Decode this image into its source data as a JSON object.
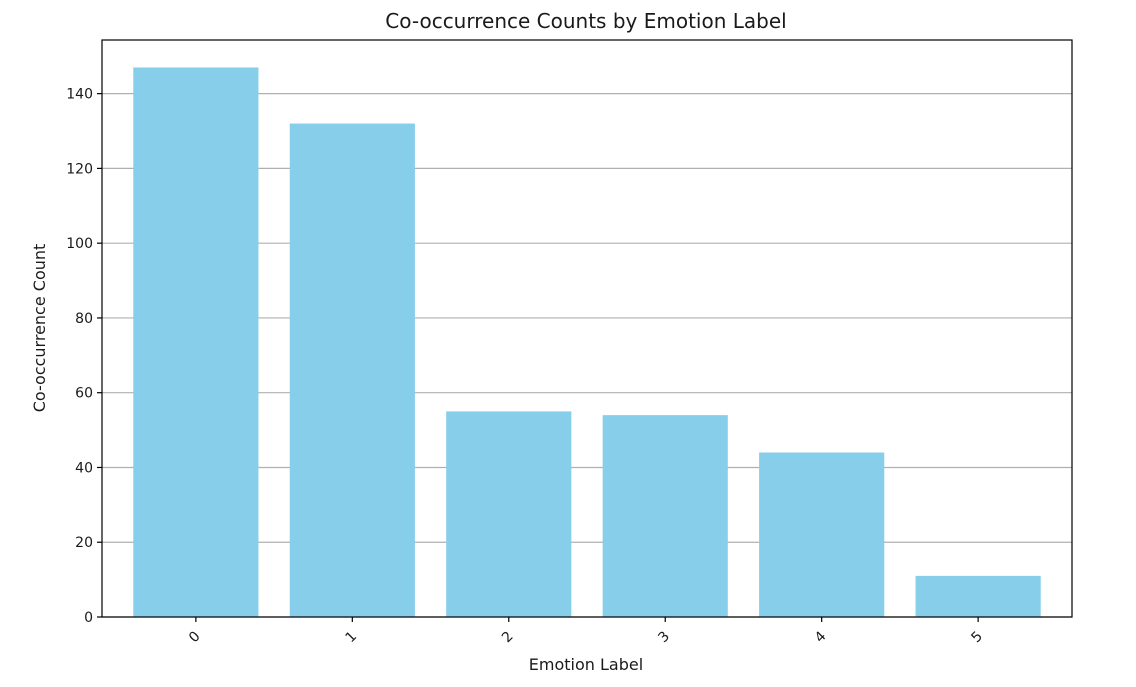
{
  "chart_data": {
    "type": "bar",
    "title": "Co-occurrence Counts by Emotion Label",
    "xlabel": "Emotion Label",
    "ylabel": "Co-occurrence Count",
    "categories": [
      "0",
      "1",
      "2",
      "3",
      "4",
      "5"
    ],
    "values": [
      147,
      132,
      55,
      54,
      44,
      11
    ],
    "ylim": [
      0,
      154.35
    ],
    "yticks": [
      0,
      20,
      40,
      60,
      80,
      100,
      120,
      140
    ],
    "grid": "y-axis only",
    "x_tick_rotation": "45 degrees",
    "bar_color": "#87ceeb"
  }
}
